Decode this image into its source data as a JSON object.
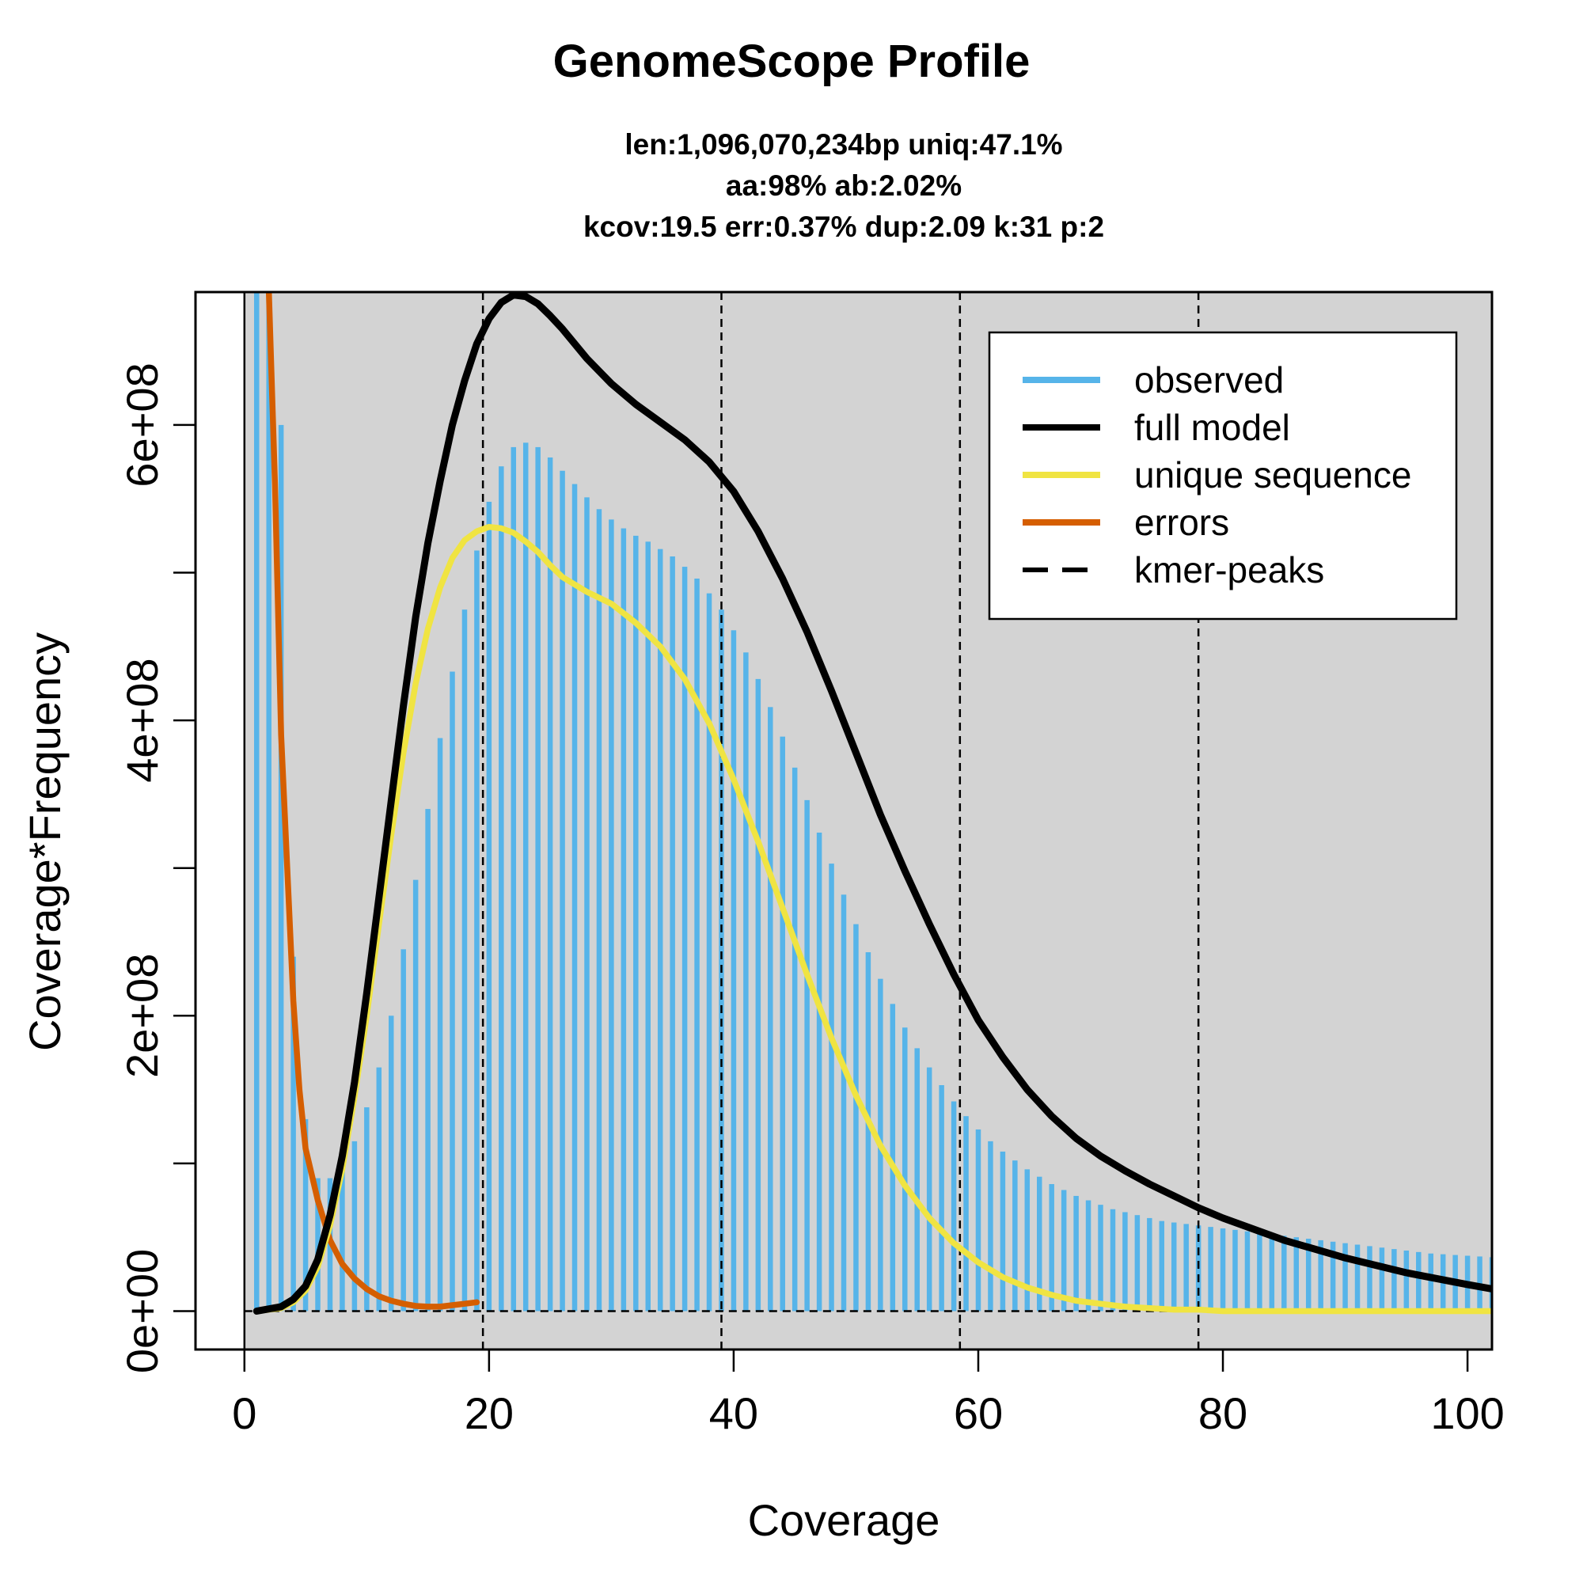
{
  "chart_data": {
    "type": "bar",
    "title": "GenomeScope Profile",
    "subtitle_lines": [
      "len:1,096,070,234bp uniq:47.1%",
      "aa:98% ab:2.02%",
      "kcov:19.5 err:0.37%  dup:2.09  k:31 p:2"
    ],
    "xlabel": "Coverage",
    "ylabel": "Coverage*Frequency",
    "xlim": [
      -4,
      102
    ],
    "ylim": [
      -26000000,
      690000000
    ],
    "x_ticks": [
      0,
      20,
      40,
      60,
      80,
      100
    ],
    "x_tick_labels": [
      "0",
      "20",
      "40",
      "60",
      "80",
      "100"
    ],
    "y_ticks": [
      0,
      100000000,
      200000000,
      300000000,
      400000000,
      500000000,
      600000000
    ],
    "y_tick_labels": [
      "0e+00",
      "",
      "2e+08",
      "",
      "4e+08",
      "",
      "6e+08"
    ],
    "grid": false,
    "legend_position": "top-right",
    "legend": [
      {
        "label": "observed",
        "style": "solid",
        "color": "#56b4e9"
      },
      {
        "label": "full model",
        "style": "solid",
        "color": "#000000"
      },
      {
        "label": "unique sequence",
        "style": "solid",
        "color": "#f0e442"
      },
      {
        "label": "errors",
        "style": "solid",
        "color": "#d55e00"
      },
      {
        "label": "kmer-peaks",
        "style": "dashed",
        "color": "#000000"
      }
    ],
    "panel_background": "#d3d3d3",
    "observed_x_start": 1,
    "observed": [
      2000000000,
      1500000000,
      600000000,
      240000000,
      130000000,
      90000000,
      90000000,
      95000000,
      115000000,
      138000000,
      165000000,
      200000000,
      245000000,
      292000000,
      340000000,
      388000000,
      433000000,
      475000000,
      515000000,
      548000000,
      572000000,
      585000000,
      588000000,
      585000000,
      578000000,
      569000000,
      560000000,
      551000000,
      543000000,
      536000000,
      530000000,
      525000000,
      521000000,
      516000000,
      511000000,
      504000000,
      496000000,
      486000000,
      475000000,
      461000000,
      446000000,
      428000000,
      409000000,
      389000000,
      368000000,
      346000000,
      324000000,
      303000000,
      282000000,
      262000000,
      243000000,
      225000000,
      208000000,
      192000000,
      178000000,
      165000000,
      153000000,
      142000000,
      132000000,
      123000000,
      115000000,
      108000000,
      102000000,
      96000000,
      91000000,
      86000000,
      82000000,
      78000000,
      75000000,
      72000000,
      69000000,
      67000000,
      65000000,
      63000000,
      61000000,
      60000000,
      59000000,
      58000000,
      57000000,
      56000000,
      55000000,
      54000000,
      53000000,
      52000000,
      51000000,
      50000000,
      49000000,
      48000000,
      47000000,
      46000000,
      45000000,
      44000000,
      43000000,
      42000000,
      41000000,
      40000000,
      39000000,
      38500000,
      38000000,
      37500000,
      37000000,
      36500000
    ],
    "series": [
      {
        "name": "full model",
        "color": "#000000",
        "x": [
          1,
          3,
          4,
          5,
          6,
          7,
          8,
          9,
          10,
          11,
          12,
          13,
          14,
          15,
          16,
          17,
          18,
          19,
          20,
          21,
          22,
          23,
          24,
          25,
          26,
          28,
          30,
          32,
          34,
          36,
          38,
          40,
          42,
          44,
          46,
          48,
          50,
          52,
          54,
          56,
          58,
          60,
          62,
          64,
          66,
          68,
          70,
          72,
          74,
          76,
          78,
          80,
          85,
          90,
          95,
          100,
          102
        ],
        "y": [
          0,
          3000000,
          8000000,
          17000000,
          35000000,
          65000000,
          105000000,
          155000000,
          215000000,
          280000000,
          345000000,
          410000000,
          470000000,
          520000000,
          562000000,
          600000000,
          630000000,
          655000000,
          672000000,
          683000000,
          688000000,
          687000000,
          682000000,
          674000000,
          665000000,
          645000000,
          628000000,
          614000000,
          602000000,
          590000000,
          575000000,
          555000000,
          528000000,
          496000000,
          460000000,
          420000000,
          378000000,
          336000000,
          298000000,
          262000000,
          228000000,
          197000000,
          172000000,
          150000000,
          132000000,
          117000000,
          105000000,
          95000000,
          86000000,
          78000000,
          70000000,
          63000000,
          48000000,
          36000000,
          26000000,
          18000000,
          15000000
        ]
      },
      {
        "name": "unique sequence",
        "color": "#f0e442",
        "x": [
          1,
          3,
          4,
          5,
          6,
          7,
          8,
          9,
          10,
          11,
          12,
          13,
          14,
          15,
          16,
          17,
          18,
          19,
          20,
          21,
          22,
          23,
          24,
          25,
          26,
          28,
          30,
          32,
          34,
          36,
          38,
          40,
          42,
          44,
          46,
          48,
          50,
          52,
          54,
          56,
          58,
          60,
          62,
          64,
          66,
          68,
          70,
          72,
          74,
          76,
          78,
          80,
          85,
          90,
          95,
          100,
          102
        ],
        "y": [
          0,
          2000000,
          6000000,
          14000000,
          30000000,
          58000000,
          96000000,
          145000000,
          200000000,
          262000000,
          322000000,
          378000000,
          425000000,
          462000000,
          490000000,
          510000000,
          522000000,
          528000000,
          531000000,
          530000000,
          527000000,
          521000000,
          514000000,
          505000000,
          497000000,
          487000000,
          479000000,
          466000000,
          450000000,
          428000000,
          398000000,
          360000000,
          318000000,
          273000000,
          228000000,
          185000000,
          146000000,
          112000000,
          85000000,
          63000000,
          46000000,
          33000000,
          23000000,
          16000000,
          11000000,
          7000000,
          5000000,
          3000000,
          2000000,
          1000000,
          1000000,
          0,
          0,
          0,
          0,
          0,
          0
        ]
      },
      {
        "name": "errors",
        "color": "#d55e00",
        "x": [
          2,
          2.5,
          3,
          3.5,
          4,
          4.5,
          5,
          6,
          7,
          8,
          9,
          10,
          11,
          12,
          13,
          14,
          15,
          16,
          17,
          18,
          19
        ],
        "y": [
          690000000,
          560000000,
          390000000,
          300000000,
          210000000,
          150000000,
          110000000,
          75000000,
          48000000,
          32000000,
          22000000,
          15000000,
          10000000,
          7000000,
          5000000,
          3500000,
          3000000,
          3000000,
          4000000,
          5000000,
          6000000
        ]
      }
    ],
    "kmer_peaks": [
      19.5,
      39,
      58.5,
      78
    ]
  }
}
